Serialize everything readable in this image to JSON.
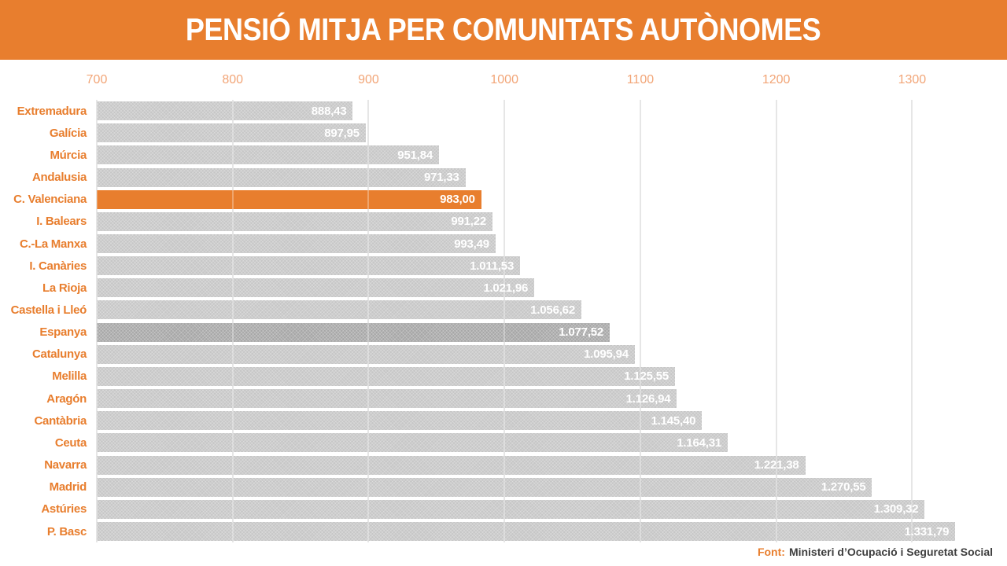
{
  "header": {
    "title": "PENSIÓ MITJA PER COMUNITATS AUTÒNOMES"
  },
  "footer": {
    "label": "Font:",
    "text": "Ministeri d’Ocupació i Seguretat Social"
  },
  "colors": {
    "accent_orange": "#E87E2E",
    "tick_label_orange": "#F2A577",
    "bar_gray": "#C6C6C6",
    "bar_dark_gray": "#A6A6A6",
    "gridline_gray": "#DBDBDB",
    "value_text": "#FFFFFF",
    "footer_text": "#3F3F3F"
  },
  "chart_data": {
    "type": "bar",
    "orientation": "horizontal",
    "title": "PENSIÓ MITJA PER COMUNITATS AUTÒNOMES",
    "categories": [
      "Extremadura",
      "Galícia",
      "Múrcia",
      "Andalusia",
      "C. Valenciana",
      "I. Balears",
      "C.-La Manxa",
      "I. Canàries",
      "La Rioja",
      "Castella i Lleó",
      "Espanya",
      "Catalunya",
      "Melilla",
      "Aragón",
      "Cantàbria",
      "Ceuta",
      "Navarra",
      "Madrid",
      "Astúries",
      "P. Basc"
    ],
    "values": [
      888.43,
      897.95,
      951.84,
      971.33,
      983.0,
      991.22,
      993.49,
      1011.53,
      1021.96,
      1056.62,
      1077.52,
      1095.94,
      1125.55,
      1126.94,
      1145.4,
      1164.31,
      1221.38,
      1270.55,
      1309.32,
      1331.79
    ],
    "value_labels": [
      "888,43",
      "897,95",
      "951,84",
      "971,33",
      "983,00",
      "991,22",
      "993,49",
      "1.011,53",
      "1.021,96",
      "1.056,62",
      "1.077,52",
      "1.095,94",
      "1.125,55",
      "1.126,94",
      "1.145,40",
      "1.164,31",
      "1.221,38",
      "1.270,55",
      "1.309,32",
      "1.331,79"
    ],
    "axis": {
      "min": 700,
      "max": 1360,
      "ticks": [
        700,
        800,
        900,
        1000,
        1100,
        1200,
        1300
      ]
    },
    "grid": true,
    "legend": false,
    "highlight": {
      "index": 4,
      "category": "C. Valenciana",
      "color": "#E87E2E"
    },
    "emphasis": {
      "index": 10,
      "category": "Espanya",
      "color": "#A6A6A6"
    },
    "source": "Font: Ministeri d’Ocupació i Seguretat Social"
  }
}
